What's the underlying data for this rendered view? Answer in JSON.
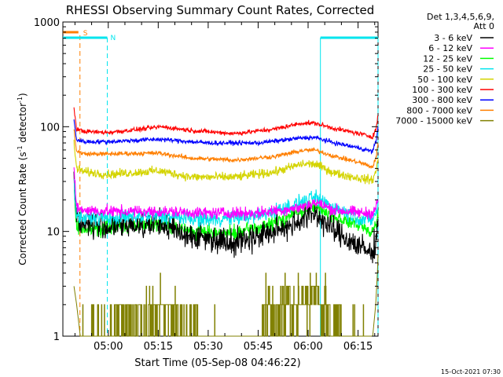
{
  "chart_data": {
    "type": "line",
    "title": "RHESSI Observing Summary Count Rates, Corrected",
    "xlabel": "Start Time (05-Sep-08 04:46:22)",
    "ylabel_main": "Corrected Count Rate (s",
    "ylabel_sup1": "-1",
    "ylabel_mid": " detector",
    "ylabel_sup2": "-1",
    "ylabel_end": ")",
    "footer": "15-Oct-2021 07:30",
    "y_scale": "log",
    "ylim": [
      1,
      1000
    ],
    "y_ticks": [
      1,
      10,
      100,
      1000
    ],
    "y_tick_labels": [
      "1",
      "10",
      "100",
      "1000"
    ],
    "x_start_minutes": 286.37,
    "x_end_minutes": 381.0,
    "x_ticks_minutes": [
      300,
      315,
      330,
      345,
      360,
      375
    ],
    "x_tick_labels": [
      "05:00",
      "05:15",
      "05:30",
      "05:45",
      "06:00",
      "06:15"
    ],
    "legend_header": [
      "Det 1,3,4,5,6,9,",
      "Att 0"
    ],
    "legend_position": "right",
    "markers": {
      "saa_label": "S",
      "saa_color": "#ff7f00",
      "saa_start": 286.37,
      "saa_end": 291.5,
      "saa_exit": 291.5,
      "night_label": "N",
      "night_color": "#00e5ee",
      "night_spans": [
        [
          286.37,
          299.7
        ],
        [
          363.7,
          381.0
        ]
      ],
      "night_dashed": [
        299.7,
        381.0
      ],
      "night_solid": [
        363.7
      ]
    },
    "series": [
      {
        "name": "3 - 6 keV",
        "color": "#000000",
        "noise": 0.09,
        "points": [
          [
            289.7,
            30
          ],
          [
            290.5,
            13
          ],
          [
            293,
            12
          ],
          [
            300,
            11
          ],
          [
            315,
            12
          ],
          [
            325,
            9
          ],
          [
            338,
            8
          ],
          [
            350,
            10
          ],
          [
            358,
            13
          ],
          [
            362,
            15
          ],
          [
            368,
            10
          ],
          [
            376,
            7
          ],
          [
            379.3,
            6
          ],
          [
            380.4,
            9
          ],
          [
            381,
            12
          ]
        ]
      },
      {
        "name": "6 - 12 keV",
        "color": "#ff00ff",
        "noise": 0.04,
        "points": [
          [
            289.7,
            40
          ],
          [
            290.5,
            17
          ],
          [
            293,
            16
          ],
          [
            300,
            15.5
          ],
          [
            315,
            15.5
          ],
          [
            330,
            15
          ],
          [
            345,
            15
          ],
          [
            358,
            17
          ],
          [
            362,
            19
          ],
          [
            368,
            16
          ],
          [
            376,
            15
          ],
          [
            379.3,
            15
          ],
          [
            380.4,
            17
          ],
          [
            381,
            20
          ]
        ]
      },
      {
        "name": "12 - 25 keV",
        "color": "#00ff00",
        "noise": 0.05,
        "points": [
          [
            289.7,
            25
          ],
          [
            290.5,
            11
          ],
          [
            293,
            10.5
          ],
          [
            300,
            11
          ],
          [
            315,
            12
          ],
          [
            325,
            10
          ],
          [
            338,
            9.5
          ],
          [
            350,
            12
          ],
          [
            358,
            16
          ],
          [
            362,
            17
          ],
          [
            368,
            14
          ],
          [
            376,
            11
          ],
          [
            379.3,
            10
          ],
          [
            380.4,
            12
          ],
          [
            381,
            16
          ]
        ]
      },
      {
        "name": "25 - 50 keV",
        "color": "#00e5ee",
        "noise": 0.05,
        "points": [
          [
            289.7,
            30
          ],
          [
            290.5,
            14
          ],
          [
            293,
            13.5
          ],
          [
            300,
            13.5
          ],
          [
            315,
            14
          ],
          [
            330,
            13
          ],
          [
            345,
            14
          ],
          [
            358,
            19
          ],
          [
            362,
            21
          ],
          [
            368,
            17
          ],
          [
            376,
            13
          ],
          [
            379.3,
            13
          ],
          [
            380.4,
            15
          ],
          [
            381,
            18
          ]
        ]
      },
      {
        "name": "50 - 100 keV",
        "color": "#d4d400",
        "noise": 0.03,
        "points": [
          [
            289.7,
            70
          ],
          [
            290.5,
            40
          ],
          [
            293,
            37
          ],
          [
            300,
            35
          ],
          [
            315,
            38
          ],
          [
            325,
            33
          ],
          [
            338,
            33
          ],
          [
            350,
            37
          ],
          [
            358,
            44
          ],
          [
            362,
            44
          ],
          [
            368,
            36
          ],
          [
            376,
            32
          ],
          [
            379.3,
            31
          ],
          [
            380.4,
            37
          ],
          [
            381,
            50
          ]
        ]
      },
      {
        "name": "100 - 300 keV",
        "color": "#ff0000",
        "noise": 0.015,
        "points": [
          [
            289.7,
            150
          ],
          [
            290.5,
            95
          ],
          [
            293,
            90
          ],
          [
            300,
            88
          ],
          [
            310,
            95
          ],
          [
            316,
            100
          ],
          [
            325,
            92
          ],
          [
            338,
            86
          ],
          [
            350,
            95
          ],
          [
            358,
            108
          ],
          [
            362,
            108
          ],
          [
            368,
            96
          ],
          [
            376,
            85
          ],
          [
            379.3,
            80
          ],
          [
            380.4,
            95
          ],
          [
            381,
            130
          ]
        ]
      },
      {
        "name": "300 - 800 keV",
        "color": "#0000ff",
        "noise": 0.015,
        "points": [
          [
            289.7,
            115
          ],
          [
            290.5,
            75
          ],
          [
            293,
            72
          ],
          [
            300,
            72
          ],
          [
            315,
            76
          ],
          [
            330,
            70
          ],
          [
            345,
            70
          ],
          [
            358,
            78
          ],
          [
            362,
            79
          ],
          [
            368,
            70
          ],
          [
            376,
            62
          ],
          [
            379.3,
            58
          ],
          [
            380.4,
            72
          ],
          [
            381,
            100
          ]
        ]
      },
      {
        "name": "800 - 7000 keV",
        "color": "#ff7f00",
        "noise": 0.015,
        "points": [
          [
            289.7,
            95
          ],
          [
            290.5,
            58
          ],
          [
            293,
            55
          ],
          [
            300,
            55
          ],
          [
            315,
            56
          ],
          [
            325,
            50
          ],
          [
            338,
            48
          ],
          [
            350,
            52
          ],
          [
            358,
            59
          ],
          [
            362,
            60
          ],
          [
            368,
            52
          ],
          [
            376,
            45
          ],
          [
            379.3,
            41
          ],
          [
            380.4,
            50
          ],
          [
            381,
            70
          ]
        ]
      },
      {
        "name": "7000 - 15000 keV",
        "color": "#808000",
        "noise": 0,
        "points": [
          [
            289.7,
            3
          ],
          [
            290.5,
            2
          ],
          [
            291.6,
            1
          ]
        ]
      }
    ]
  }
}
